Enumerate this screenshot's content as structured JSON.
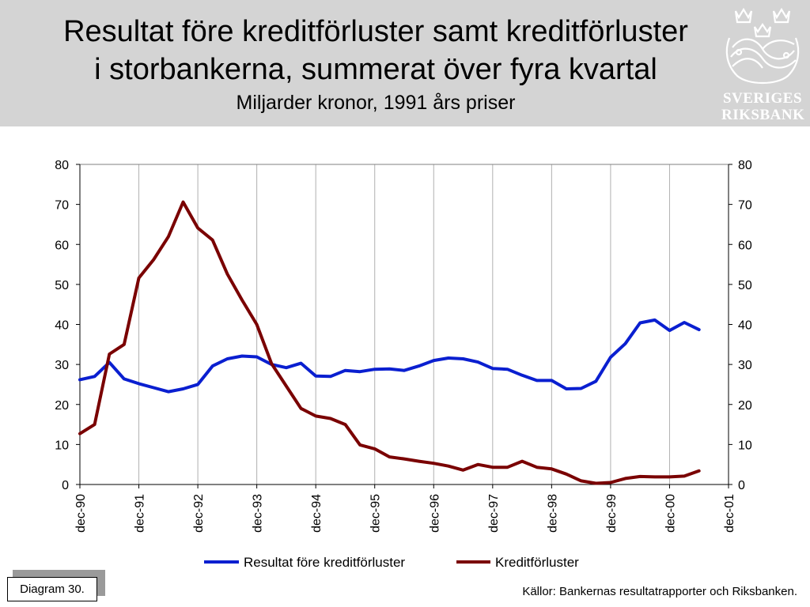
{
  "header": {
    "title_line1": "Resultat före kreditförluster samt kreditförluster",
    "title_line2": "i storbankerna, summerat över fyra kvartal",
    "subtitle": "Miljarder kronor, 1991 års priser",
    "logo_line1": "SVERIGES",
    "logo_line2": "RIKSBANK"
  },
  "footer": {
    "diagram_label": "Diagram 30.",
    "source": "Källor: Bankernas resultatrapporter och Riksbanken."
  },
  "colors": {
    "series1": "#0a1fd0",
    "series2": "#7a0000",
    "header_bg": "#d4d4d4"
  },
  "chart_data": {
    "type": "line",
    "title": "Resultat före kreditförluster samt kreditförluster i storbankerna, summerat över fyra kvartal",
    "subtitle": "Miljarder kronor, 1991 års priser",
    "xlabel": "",
    "ylabel": "",
    "ylim": [
      0,
      80
    ],
    "yticks": [
      0,
      10,
      20,
      30,
      40,
      50,
      60,
      70,
      80
    ],
    "y_right_axis": true,
    "grid": "vertical",
    "legend_position": "bottom",
    "x_tick_labels": [
      "dec-90",
      "dec-91",
      "dec-92",
      "dec-93",
      "dec-94",
      "dec-95",
      "dec-96",
      "dec-97",
      "dec-98",
      "dec-99",
      "dec-00",
      "dec-01"
    ],
    "quarters_per_tick": 4,
    "series": [
      {
        "name": "Resultat före kreditförluster",
        "color": "#0a1fd0",
        "values": [
          26.2,
          27.0,
          30.5,
          26.4,
          25.2,
          24.2,
          23.2,
          23.9,
          25.0,
          29.6,
          31.4,
          32.1,
          31.9,
          30.0,
          29.2,
          30.3,
          27.1,
          27.0,
          28.5,
          28.2,
          28.8,
          28.9,
          28.5,
          29.6,
          31.0,
          31.6,
          31.4,
          30.6,
          29.0,
          28.8,
          27.3,
          26.0,
          26.0,
          23.9,
          24.0,
          25.8,
          31.8,
          35.2,
          40.4,
          41.1,
          38.5,
          40.5,
          38.7
        ]
      },
      {
        "name": "Kreditförluster",
        "color": "#7a0000",
        "values": [
          12.7,
          15.0,
          32.6,
          35.0,
          51.6,
          56.2,
          61.9,
          70.6,
          64.1,
          61.1,
          52.6,
          46.1,
          40.0,
          30.2,
          24.6,
          19.0,
          17.1,
          16.5,
          15.0,
          9.9,
          8.9,
          6.9,
          6.4,
          5.8,
          5.3,
          4.6,
          3.6,
          5.0,
          4.3,
          4.3,
          5.8,
          4.3,
          3.9,
          2.6,
          0.9,
          0.3,
          0.5,
          1.5,
          2.0,
          1.9,
          1.9,
          2.1,
          3.4
        ]
      }
    ]
  }
}
